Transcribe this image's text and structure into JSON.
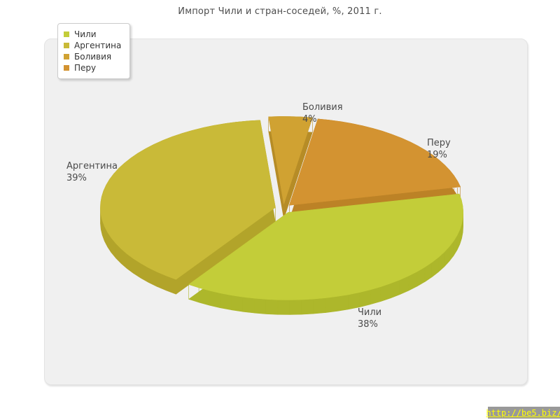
{
  "chart_data": {
    "type": "pie",
    "style": "3d-exploded",
    "title": "Импорт Чили и стран-соседей, %, 2011 г.",
    "unit": "%",
    "plot_background": "#f0f0f0",
    "start_angle_deg": -5,
    "direction": "clockwise",
    "clockwise_order": [
      2,
      3,
      0,
      1
    ],
    "legend_position": "top-left",
    "slices": [
      {
        "label": "Чили",
        "value": 38,
        "pct_label": "38%",
        "color": "#c3cd39",
        "side_color": "#adb72b"
      },
      {
        "label": "Аргентина",
        "value": 39,
        "pct_label": "39%",
        "color": "#c9ba38",
        "side_color": "#b2a42a"
      },
      {
        "label": "Боливия",
        "value": 4,
        "pct_label": "4%",
        "color": "#d0a232",
        "side_color": "#b68c26"
      },
      {
        "label": "Перу",
        "value": 19,
        "pct_label": "19%",
        "color": "#d39331",
        "side_color": "#bc8226"
      }
    ]
  },
  "watermark": {
    "text": "http://be5.biz/",
    "bar_color": "#999999",
    "text_color": "#ffff00"
  }
}
